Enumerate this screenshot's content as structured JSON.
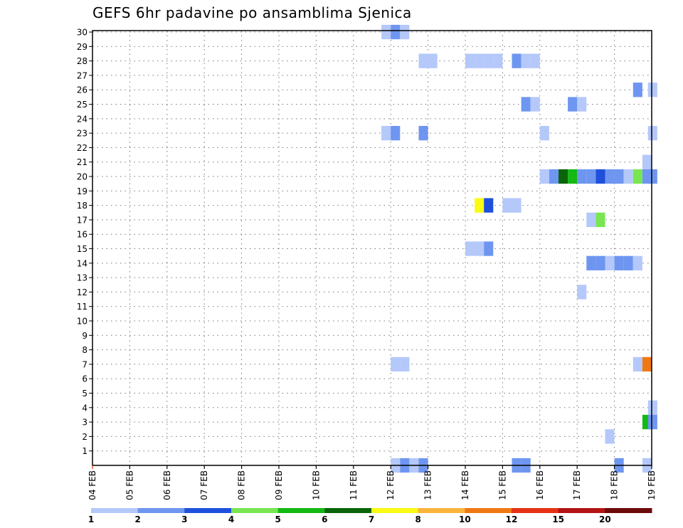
{
  "chart_data": {
    "type": "heatmap",
    "title": "GEFS 6hr padavine po ansamblima Sjenica",
    "xlabel": "",
    "ylabel": "",
    "x_tick_labels": [
      "04 FEB",
      "05 FEB",
      "06 FEB",
      "07 FEB",
      "08 FEB",
      "09 FEB",
      "10 FEB",
      "11 FEB",
      "12 FEB",
      "13 FEB",
      "14 FEB",
      "15 FEB",
      "16 FEB",
      "17 FEB",
      "18 FEB",
      "19 FEB"
    ],
    "x_range_days": [
      0,
      15
    ],
    "y_tick_labels": [
      "1",
      "2",
      "3",
      "4",
      "5",
      "6",
      "7",
      "8",
      "9",
      "10",
      "11",
      "12",
      "13",
      "14",
      "15",
      "16",
      "17",
      "18",
      "19",
      "20",
      "21",
      "22",
      "23",
      "24",
      "25",
      "26",
      "27",
      "28",
      "29",
      "30"
    ],
    "y_range": [
      0,
      30
    ],
    "grid": true,
    "colorbar": {
      "labels": [
        "1",
        "2",
        "3",
        "4",
        "5",
        "6",
        "7",
        "8",
        "10",
        "12",
        "15",
        "20"
      ],
      "colors": [
        "#b4c8fa",
        "#6e96f0",
        "#1e50dc",
        "#78e650",
        "#14b914",
        "#0a640a",
        "#fafa14",
        "#fab43c",
        "#f07814",
        "#e63214",
        "#b41414",
        "#6e0a0a"
      ]
    },
    "cells": [
      {
        "m": 30,
        "d": 7.75,
        "c": 0
      },
      {
        "m": 30,
        "d": 8.0,
        "c": 1
      },
      {
        "m": 30,
        "d": 8.25,
        "c": 0
      },
      {
        "m": 28,
        "d": 8.75,
        "c": 0
      },
      {
        "m": 28,
        "d": 9.0,
        "c": 0
      },
      {
        "m": 28,
        "d": 10.0,
        "c": 0
      },
      {
        "m": 28,
        "d": 10.25,
        "c": 0
      },
      {
        "m": 28,
        "d": 10.5,
        "c": 0
      },
      {
        "m": 28,
        "d": 10.75,
        "c": 0
      },
      {
        "m": 28,
        "d": 11.25,
        "c": 1
      },
      {
        "m": 28,
        "d": 11.5,
        "c": 0
      },
      {
        "m": 28,
        "d": 11.75,
        "c": 0
      },
      {
        "m": 26,
        "d": 14.5,
        "c": 1
      },
      {
        "m": 26,
        "d": 14.9,
        "c": 0
      },
      {
        "m": 25,
        "d": 11.5,
        "c": 1
      },
      {
        "m": 25,
        "d": 11.75,
        "c": 0
      },
      {
        "m": 25,
        "d": 12.75,
        "c": 1
      },
      {
        "m": 25,
        "d": 13.0,
        "c": 0
      },
      {
        "m": 23,
        "d": 7.75,
        "c": 0
      },
      {
        "m": 23,
        "d": 8.0,
        "c": 1
      },
      {
        "m": 23,
        "d": 8.75,
        "c": 1
      },
      {
        "m": 23,
        "d": 12.0,
        "c": 0
      },
      {
        "m": 23,
        "d": 14.9,
        "c": 0
      },
      {
        "m": 21,
        "d": 14.75,
        "c": 0
      },
      {
        "m": 20,
        "d": 12.0,
        "c": 0
      },
      {
        "m": 20,
        "d": 12.25,
        "c": 1
      },
      {
        "m": 20,
        "d": 12.5,
        "c": 5
      },
      {
        "m": 20,
        "d": 12.75,
        "c": 4
      },
      {
        "m": 20,
        "d": 13.0,
        "c": 1
      },
      {
        "m": 20,
        "d": 13.25,
        "c": 1
      },
      {
        "m": 20,
        "d": 13.5,
        "c": 2
      },
      {
        "m": 20,
        "d": 13.75,
        "c": 1
      },
      {
        "m": 20,
        "d": 14.0,
        "c": 1
      },
      {
        "m": 20,
        "d": 14.25,
        "c": 0
      },
      {
        "m": 20,
        "d": 14.5,
        "c": 3
      },
      {
        "m": 20,
        "d": 14.75,
        "c": 1
      },
      {
        "m": 20,
        "d": 14.9,
        "c": 1
      },
      {
        "m": 18,
        "d": 10.25,
        "c": 6
      },
      {
        "m": 18,
        "d": 10.5,
        "c": 2
      },
      {
        "m": 18,
        "d": 11.0,
        "c": 0
      },
      {
        "m": 18,
        "d": 11.25,
        "c": 0
      },
      {
        "m": 17,
        "d": 13.25,
        "c": 0
      },
      {
        "m": 17,
        "d": 13.5,
        "c": 3
      },
      {
        "m": 15,
        "d": 10.0,
        "c": 0
      },
      {
        "m": 15,
        "d": 10.25,
        "c": 0
      },
      {
        "m": 15,
        "d": 10.5,
        "c": 1
      },
      {
        "m": 14,
        "d": 13.25,
        "c": 1
      },
      {
        "m": 14,
        "d": 13.5,
        "c": 1
      },
      {
        "m": 14,
        "d": 13.75,
        "c": 0
      },
      {
        "m": 14,
        "d": 14.0,
        "c": 1
      },
      {
        "m": 14,
        "d": 14.25,
        "c": 1
      },
      {
        "m": 14,
        "d": 14.5,
        "c": 0
      },
      {
        "m": 12,
        "d": 13.0,
        "c": 0
      },
      {
        "m": 7,
        "d": 8.0,
        "c": 0
      },
      {
        "m": 7,
        "d": 8.25,
        "c": 0
      },
      {
        "m": 7,
        "d": 14.5,
        "c": 0
      },
      {
        "m": 7,
        "d": 14.75,
        "c": 8
      },
      {
        "m": 4,
        "d": 14.9,
        "c": 0
      },
      {
        "m": 3,
        "d": 14.75,
        "c": 4
      },
      {
        "m": 3,
        "d": 14.9,
        "c": 1
      },
      {
        "m": 2,
        "d": 13.75,
        "c": 0
      },
      {
        "m": 0,
        "d": 8.0,
        "c": 0
      },
      {
        "m": 0,
        "d": 8.25,
        "c": 1
      },
      {
        "m": 0,
        "d": 8.5,
        "c": 0
      },
      {
        "m": 0,
        "d": 8.75,
        "c": 1
      },
      {
        "m": 0,
        "d": 11.25,
        "c": 1
      },
      {
        "m": 0,
        "d": 11.5,
        "c": 1
      },
      {
        "m": 0,
        "d": 14.0,
        "c": 1
      },
      {
        "m": 0,
        "d": 14.75,
        "c": 0
      }
    ]
  }
}
